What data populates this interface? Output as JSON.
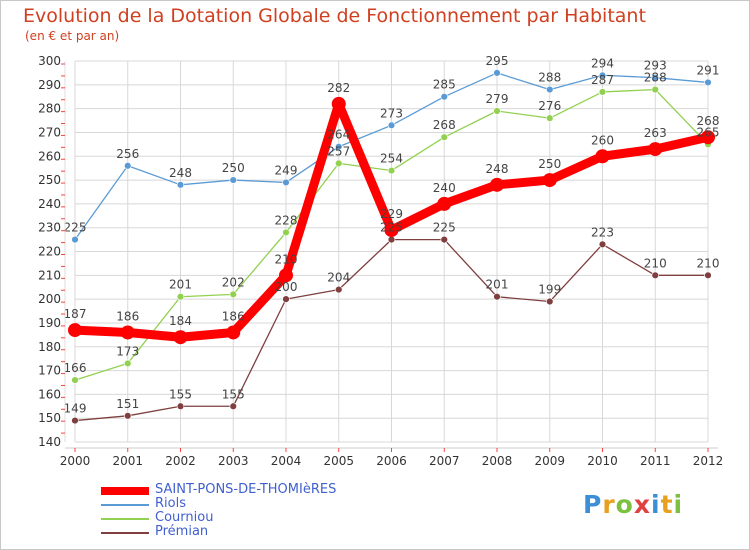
{
  "chart_data": {
    "type": "line",
    "title": "Evolution de la Dotation Globale de Fonctionnement par Habitant",
    "subtitle": "(en € et par an)",
    "xlabel": "",
    "ylabel": "",
    "ylim": [
      140,
      300
    ],
    "yticks": [
      140,
      150,
      160,
      170,
      180,
      190,
      200,
      210,
      220,
      230,
      240,
      250,
      260,
      270,
      280,
      290,
      300
    ],
    "x": [
      "2000",
      "2001",
      "2002",
      "2003",
      "2004",
      "2005",
      "2006",
      "2007",
      "2008",
      "2009",
      "2010",
      "2011",
      "2012"
    ],
    "series": [
      {
        "name": "Riols",
        "color": "#5b9bd5",
        "values": [
          225,
          256,
          248,
          250,
          249,
          264,
          273,
          285,
          295,
          288,
          294,
          293,
          291
        ]
      },
      {
        "name": "Courniou",
        "color": "#92d050",
        "values": [
          166,
          173,
          201,
          202,
          228,
          257,
          254,
          268,
          279,
          276,
          287,
          288,
          265
        ]
      },
      {
        "name": "Prémian",
        "color": "#7f3f3f",
        "values": [
          149,
          151,
          155,
          155,
          200,
          204,
          225,
          225,
          201,
          199,
          223,
          210,
          210
        ]
      },
      {
        "name": "SAINT-PONS-DE-THOMIèRES",
        "color": "#ff0000",
        "values": [
          187,
          186,
          184,
          186,
          210,
          282,
          229,
          240,
          248,
          250,
          260,
          263,
          268
        ]
      }
    ],
    "legend": [
      "SAINT-PONS-DE-THOMIèRES",
      "Riols",
      "Courniou",
      "Prémian"
    ],
    "legend_position": "bottom-left",
    "grid": true
  },
  "logo_text": "Proxiti"
}
